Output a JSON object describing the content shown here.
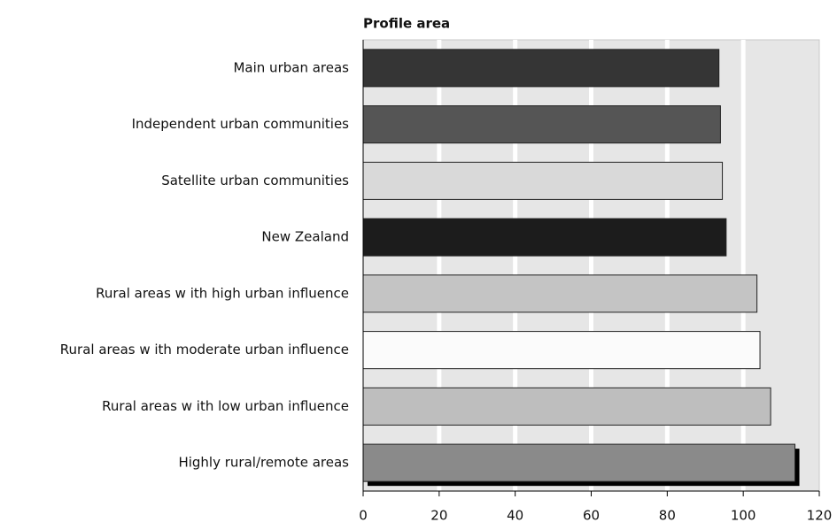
{
  "chart_data": {
    "type": "bar",
    "orientation": "horizontal",
    "title": "Profile area",
    "categories": [
      "Main urban areas",
      "Independent urban communities",
      "Satellite urban communities",
      "New  Zealand",
      "Rural areas w ith high urban influence",
      "Rural areas w ith moderate urban influence",
      "Rural areas w ith low  urban influence",
      "Highly rural/remote areas"
    ],
    "values": [
      93.6,
      94,
      94.5,
      95.5,
      103.6,
      104.4,
      107.2,
      113.6
    ],
    "colors": [
      "#353535",
      "#555555",
      "#d9d9d9",
      "#1c1c1c",
      "#c4c4c4",
      "#fbfbfb",
      "#bebebe",
      "#8a8a8a"
    ],
    "shadow": [
      false,
      false,
      false,
      false,
      false,
      false,
      false,
      true
    ],
    "xlim": [
      0,
      120
    ],
    "xticks": [
      0,
      20,
      40,
      60,
      80,
      100,
      120
    ],
    "grid": true
  }
}
